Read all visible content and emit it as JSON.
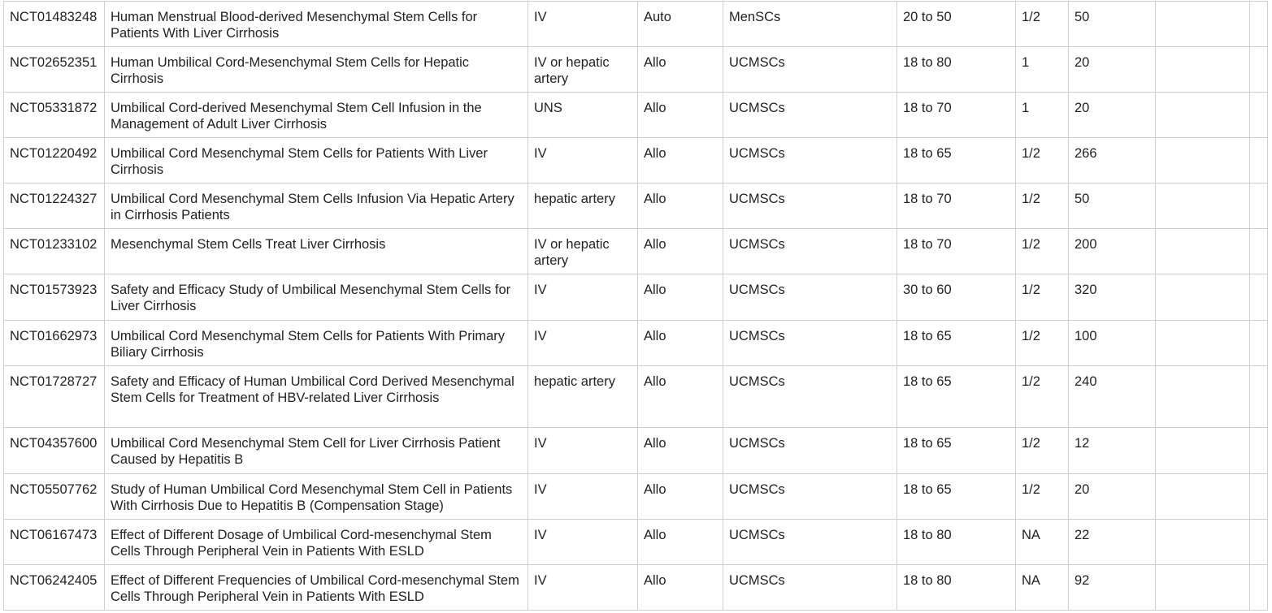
{
  "table": {
    "rows": [
      [
        "NCT01483248",
        "Human Menstrual Blood-derived Mesenchymal Stem Cells for Patients With Liver Cirrhosis",
        "IV",
        "Auto",
        "MenSCs",
        "20 to 50",
        "1/2",
        "50"
      ],
      [
        "NCT02652351",
        "Human Umbilical Cord-Mesenchymal Stem Cells for Hepatic Cirrhosis",
        "IV or hepatic artery",
        "Allo",
        "UCMSCs",
        "18 to 80",
        "1",
        "20"
      ],
      [
        "NCT05331872",
        "Umbilical Cord-derived Mesenchymal Stem Cell Infusion in the Management of Adult Liver Cirrhosis",
        "UNS",
        "Allo",
        "UCMSCs",
        "18 to 70",
        "1",
        "20"
      ],
      [
        "NCT01220492",
        "Umbilical Cord Mesenchymal Stem Cells for Patients With Liver Cirrhosis",
        "IV",
        "Allo",
        "UCMSCs",
        "18 to 65",
        "1/2",
        "266"
      ],
      [
        "NCT01224327",
        "Umbilical Cord Mesenchymal Stem Cells Infusion Via Hepatic Artery in Cirrhosis Patients",
        "hepatic artery",
        "Allo",
        "UCMSCs",
        "18 to 70",
        "1/2",
        "50"
      ],
      [
        "NCT01233102",
        "Mesenchymal Stem Cells Treat Liver Cirrhosis",
        "IV or hepatic artery",
        "Allo",
        "UCMSCs",
        "18 to 70",
        "1/2",
        "200"
      ],
      [
        "NCT01573923",
        "Safety and Efficacy Study of Umbilical Mesenchymal Stem Cells for Liver Cirrhosis",
        "IV",
        "Allo",
        "UCMSCs",
        "30 to 60",
        "1/2",
        "320"
      ],
      [
        "NCT01662973",
        "Umbilical Cord Mesenchymal Stem Cells for Patients With Primary Biliary Cirrhosis",
        "IV",
        "Allo",
        "UCMSCs",
        "18 to 65",
        "1/2",
        "100"
      ],
      [
        "NCT01728727",
        "Safety and Efficacy of Human Umbilical Cord Derived Mesenchymal Stem Cells for Treatment of HBV-related Liver Cirrhosis",
        "hepatic artery",
        "Allo",
        "UCMSCs",
        "18 to 65",
        "1/2",
        "240"
      ],
      [
        "NCT04357600",
        "Umbilical Cord Mesenchymal Stem Cell for Liver Cirrhosis Patient Caused by Hepatitis B",
        "IV",
        "Allo",
        "UCMSCs",
        "18 to 65",
        "1/2",
        "12"
      ],
      [
        "NCT05507762",
        "Study of Human Umbilical Cord Mesenchymal Stem Cell in Patients With Cirrhosis Due to Hepatitis B (Compensation Stage)",
        "IV",
        "Allo",
        "UCMSCs",
        "18 to 65",
        "1/2",
        "20"
      ],
      [
        "NCT06167473",
        "Effect of Different Dosage of Umbilical Cord-mesenchymal Stem Cells Through Peripheral Vein in Patients With ESLD",
        "IV",
        "Allo",
        "UCMSCs",
        "18 to 80",
        "NA",
        "22"
      ],
      [
        "NCT06242405",
        "Effect of Different Frequencies of Umbilical Cord-mesenchymal Stem Cells Through Peripheral Vein in Patients With ESLD",
        "IV",
        "Allo",
        "UCMSCs",
        "18 to 80",
        "NA",
        "92"
      ]
    ]
  }
}
